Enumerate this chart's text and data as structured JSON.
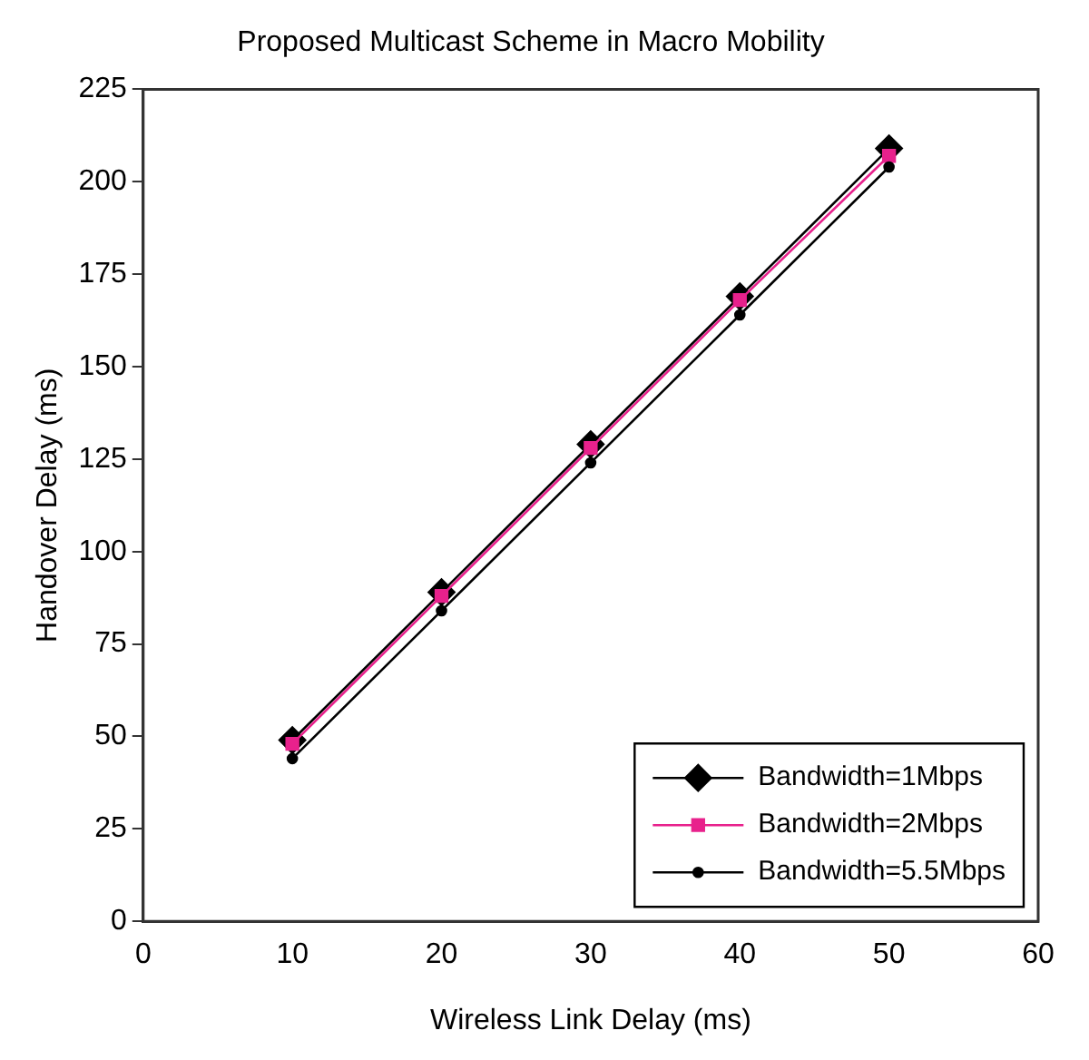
{
  "chart_data": {
    "type": "line",
    "title": "Proposed Multicast Scheme in Macro Mobility",
    "xlabel": "Wireless Link Delay (ms)",
    "ylabel": "Handover Delay (ms)",
    "x": [
      10,
      20,
      30,
      40,
      50
    ],
    "series": [
      {
        "name": "Bandwidth=1Mbps",
        "color": "#000000",
        "values": [
          49,
          89,
          129,
          169,
          209
        ],
        "marker": "diamond"
      },
      {
        "name": "Bandwidth=2Mbps",
        "color": "#e8218c",
        "values": [
          48,
          88,
          128,
          168,
          207
        ],
        "marker": "square"
      },
      {
        "name": "Bandwidth=5.5Mbps",
        "color": "#000000",
        "values": [
          44,
          84,
          124,
          164,
          204
        ],
        "marker": "circle"
      }
    ],
    "xlim": [
      0,
      60
    ],
    "xticks": [
      0,
      10,
      20,
      30,
      40,
      50,
      60
    ],
    "ylim": [
      0,
      225
    ],
    "yticks": [
      0,
      25,
      50,
      75,
      100,
      125,
      150,
      175,
      200,
      225
    ],
    "grid": false,
    "legend": "bottom right"
  }
}
